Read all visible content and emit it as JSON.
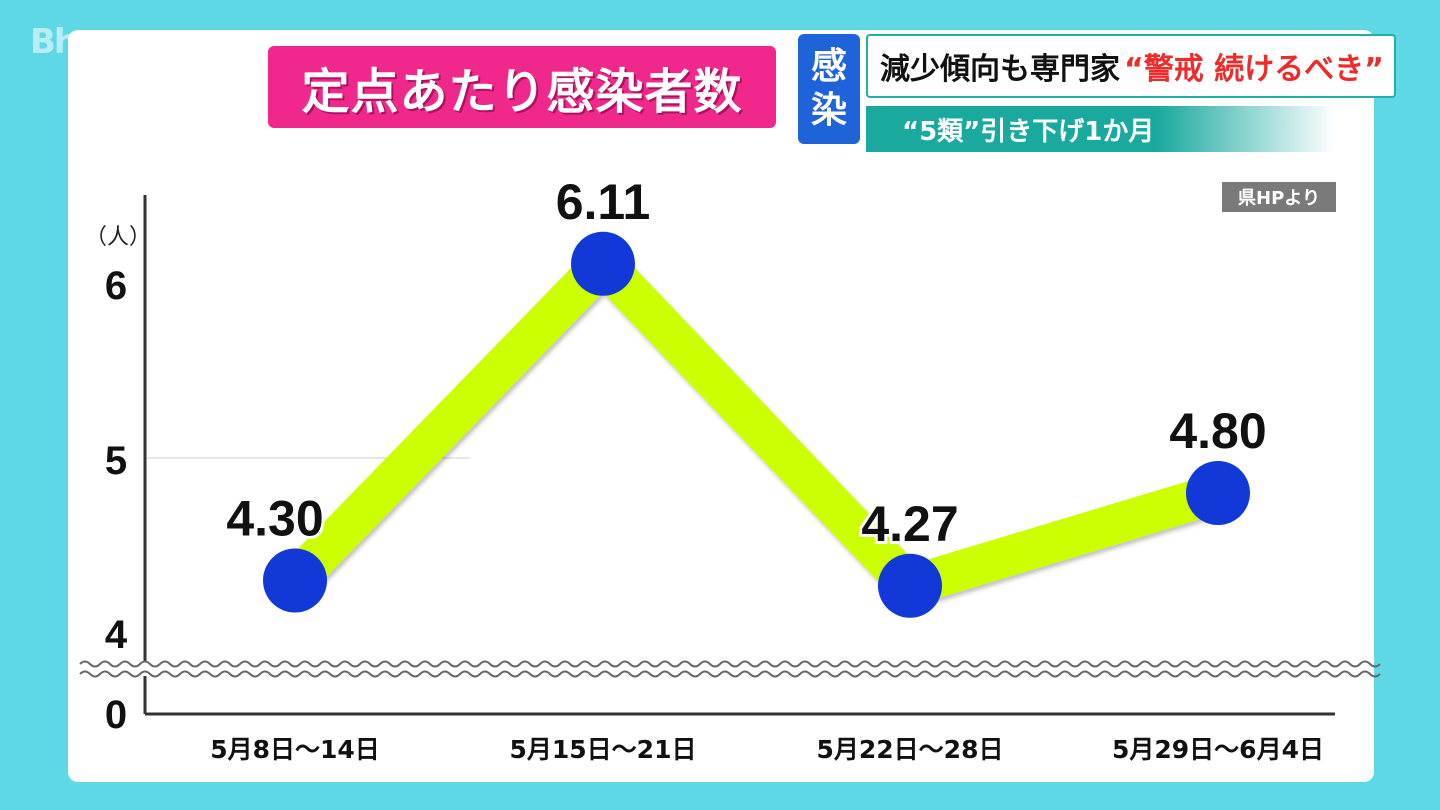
{
  "corner_logo": "Bh",
  "title": "定点あたり感染者数",
  "tag": [
    "感",
    "染"
  ],
  "headline": {
    "part1": "減少傾向も専門家",
    "part2": "“警戒 続けるべき”"
  },
  "subheadline": "“5類”引き下げ1か月",
  "source": "県HPより",
  "colors": {
    "background": "#5fd8e6",
    "title_bg": "#f0288c",
    "tag_bg": "#1f63d8",
    "line": "#ccff00",
    "marker": "#1338d8",
    "headline_accent": "#ee2a2a"
  },
  "chart_data": {
    "type": "line",
    "unit_label": "（人）",
    "y_ticks": [
      "0",
      "4",
      "5",
      "6"
    ],
    "y_axis_break": true,
    "categories": [
      "5月8日〜14日",
      "5月15日〜21日",
      "5月22日〜28日",
      "5月29日〜6月4日"
    ],
    "values": [
      4.3,
      6.11,
      4.27,
      4.8
    ],
    "labels": [
      "4.30",
      "6.11",
      "4.27",
      "4.80"
    ],
    "ylim": [
      4,
      6.2
    ]
  }
}
